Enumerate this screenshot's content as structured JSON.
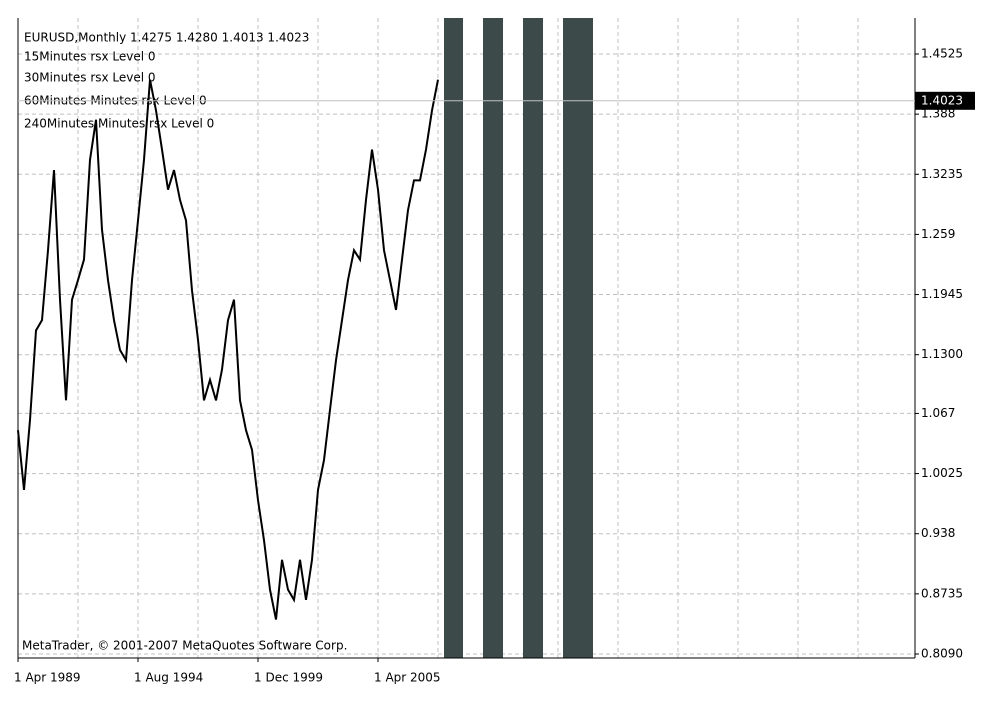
{
  "chart_data": {
    "type": "line",
    "title": "EURUSD,Monthly  1.4275 1.4280 1.4013 1.4023",
    "annotations": [
      "15Minutes rsx Level 0",
      "30Minutes rsx Level 0",
      "60Minutes Minutes rsx Level 0",
      "240Minutes Minutes rsx Level 0"
    ],
    "footer": "MetaTrader, © 2001-2007 MetaQuotes Software Corp.",
    "categories": [
      "1 Apr 1989",
      null,
      null,
      null,
      null,
      null,
      null,
      null,
      null,
      null,
      null,
      null,
      null,
      null,
      null,
      null,
      null,
      null,
      null,
      null,
      "1 Aug 1994",
      null,
      null,
      null,
      null,
      null,
      null,
      null,
      null,
      null,
      null,
      null,
      null,
      null,
      null,
      null,
      null,
      null,
      null,
      null,
      "1 Dec 1999",
      null,
      null,
      null,
      null,
      null,
      null,
      null,
      null,
      null,
      null,
      null,
      null,
      null,
      null,
      null,
      null,
      null,
      null,
      null,
      "1 Apr 2005",
      null,
      null,
      null,
      null,
      null,
      null,
      null,
      null,
      null,
      null
    ],
    "series": [
      {
        "name": "EURUSD",
        "color": "#000000",
        "values": [
          1.049,
          0.985,
          1.06,
          1.156,
          1.167,
          1.242,
          1.328,
          1.189,
          1.081,
          1.189,
          1.21,
          1.232,
          1.339,
          1.382,
          1.264,
          1.21,
          1.167,
          1.135,
          1.124,
          1.21,
          1.274,
          1.339,
          1.425,
          1.392,
          1.35,
          1.307,
          1.328,
          1.296,
          1.274,
          1.199,
          1.146,
          1.081,
          1.103,
          1.081,
          1.114,
          1.167,
          1.189,
          1.081,
          1.049,
          1.028,
          0.974,
          0.931,
          0.878,
          0.846,
          0.91,
          0.878,
          0.867,
          0.91,
          0.867,
          0.91,
          0.985,
          1.017,
          1.071,
          1.124,
          1.167,
          1.21,
          1.242,
          1.232,
          1.296,
          1.35,
          1.307,
          1.242,
          1.21,
          1.178,
          1.232,
          1.285,
          1.317,
          1.317,
          1.35,
          1.392,
          1.425
        ]
      }
    ],
    "last_price": 1.4023,
    "ylim": [
      0.8047,
      1.4911
    ],
    "yticks": [
      1.4525,
      1.388,
      1.3235,
      1.259,
      1.1945,
      {
        "value": 1.13,
        "label": "1.1300"
      },
      1.067,
      1.0025,
      0.938,
      0.8735,
      {
        "value": 0.809,
        "label": "0.8090"
      }
    ],
    "grid": true
  }
}
